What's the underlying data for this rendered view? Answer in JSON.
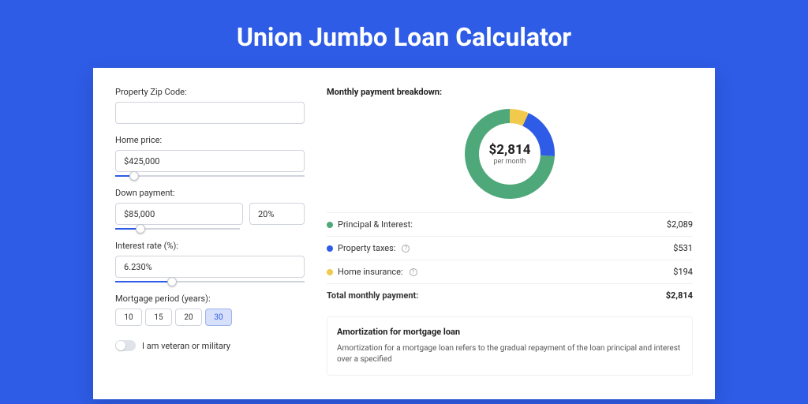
{
  "page": {
    "title": "Union Jumbo Loan Calculator",
    "background_color": "#2e5ce6",
    "card_background": "#ffffff"
  },
  "form": {
    "zip": {
      "label": "Property Zip Code:",
      "value": ""
    },
    "home_price": {
      "label": "Home price:",
      "value": "$425,000",
      "slider_pct": 10
    },
    "down_payment": {
      "label": "Down payment:",
      "amount": "$85,000",
      "percent": "20%",
      "slider_pct": 20
    },
    "interest": {
      "label": "Interest rate (%):",
      "value": "6.230%",
      "slider_pct": 30
    },
    "period": {
      "label": "Mortgage period (years):",
      "options": [
        "10",
        "15",
        "20",
        "30"
      ],
      "selected": "30"
    },
    "veteran": {
      "label": "I am veteran or military",
      "checked": false
    }
  },
  "breakdown": {
    "title": "Monthly payment breakdown:",
    "center_amount": "$2,814",
    "center_sub": "per month",
    "type": "donut",
    "donut_radius": 48,
    "donut_stroke": 18,
    "items": [
      {
        "label": "Principal & Interest:",
        "value": "$2,089",
        "color": "#4fa87a",
        "pct": 74.2,
        "has_info": false
      },
      {
        "label": "Property taxes:",
        "value": "$531",
        "color": "#2e5ce6",
        "pct": 18.9,
        "has_info": true
      },
      {
        "label": "Home insurance:",
        "value": "$194",
        "color": "#f0c94d",
        "pct": 6.9,
        "has_info": true
      }
    ],
    "total": {
      "label": "Total monthly payment:",
      "value": "$2,814"
    }
  },
  "amortization": {
    "title": "Amortization for mortgage loan",
    "text": "Amortization for a mortgage loan refers to the gradual repayment of the loan principal and interest over a specified"
  }
}
